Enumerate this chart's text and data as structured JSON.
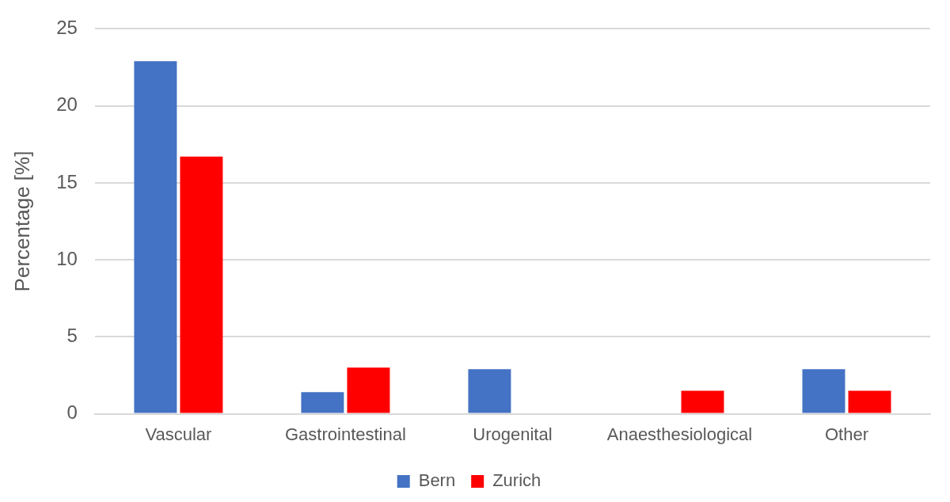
{
  "chart_data": {
    "type": "bar",
    "ylabel": "Percentage [%]",
    "categories": [
      "Vascular",
      "Gastrointestinal",
      "Urogenital",
      "Anaesthesiological",
      "Other"
    ],
    "series": [
      {
        "name": "Bern",
        "color": "#4472c4",
        "values": [
          22.9,
          1.4,
          2.9,
          0,
          2.9
        ]
      },
      {
        "name": "Zurich",
        "color": "#ff0000",
        "values": [
          16.7,
          3.0,
          0,
          1.5,
          1.5
        ]
      }
    ],
    "ylim": [
      0,
      25
    ],
    "yticks": [
      0,
      5,
      10,
      15,
      20,
      25
    ],
    "grid": "y",
    "legend": "bottom"
  }
}
